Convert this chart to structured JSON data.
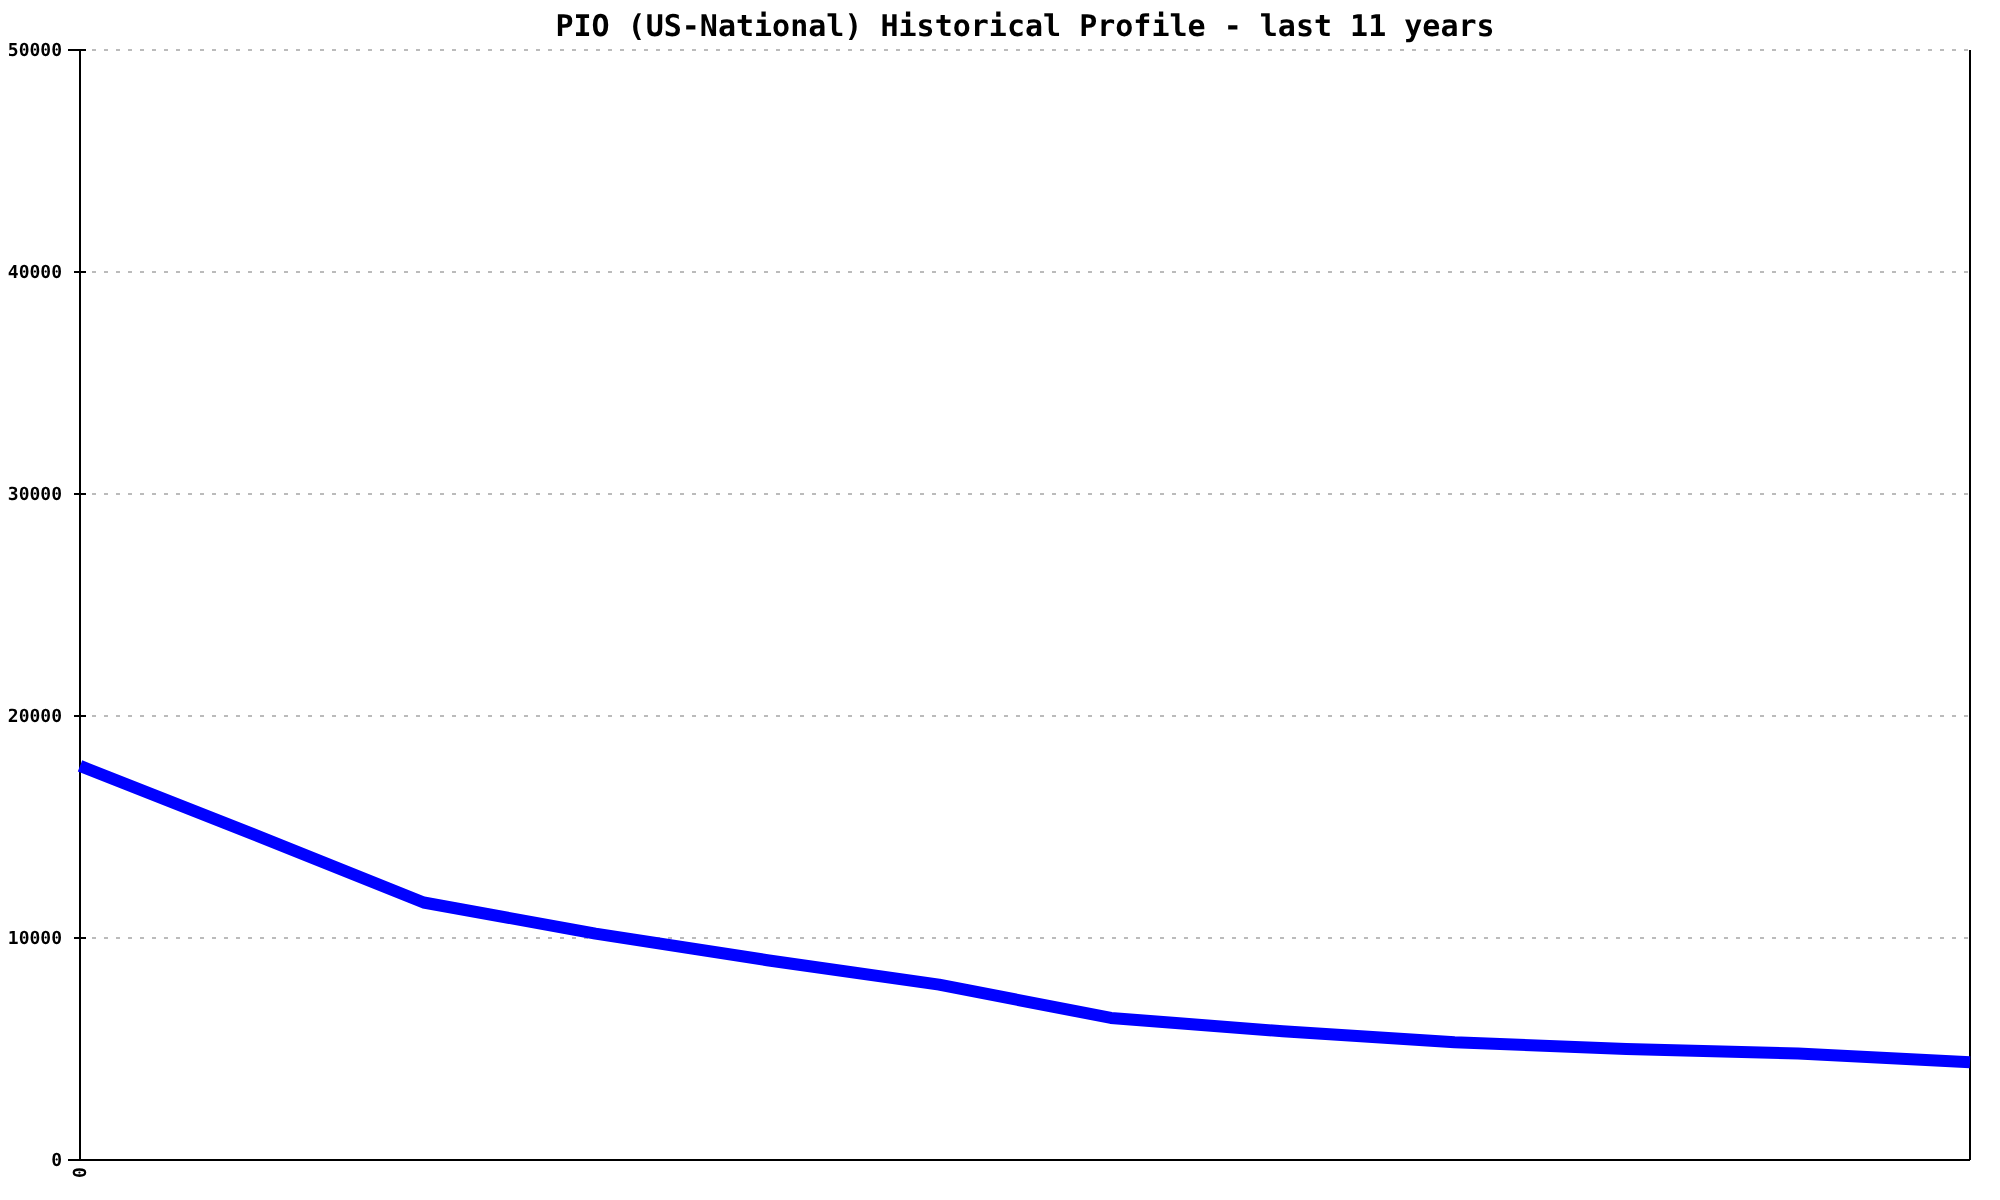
{
  "chart_data": {
    "type": "line",
    "title": "PIO (US-National) Historical Profile - last 11 years",
    "categories": [
      "0",
      null,
      null,
      null,
      null,
      null,
      null,
      null,
      null,
      null,
      null,
      null
    ],
    "series": [
      {
        "color": "#0000ff",
        "values": [
          17750,
          14700,
          11600,
          10200,
          9000,
          7900,
          6400,
          5800,
          5300,
          5000,
          4800,
          4400
        ]
      }
    ],
    "ylim": [
      0,
      50000
    ],
    "yticks": [
      0,
      10000,
      20000,
      30000,
      40000,
      50000
    ],
    "grid": "y",
    "marker": "none",
    "line_style": "solid"
  }
}
